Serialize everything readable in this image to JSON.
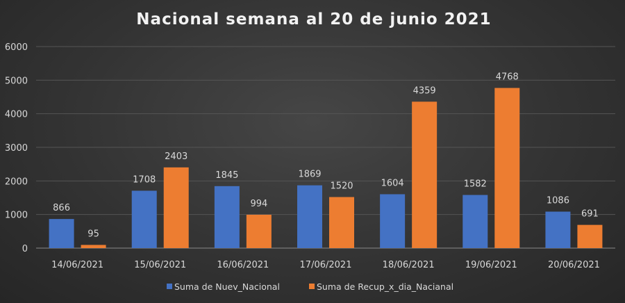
{
  "chart_data": {
    "type": "bar",
    "title": "Nacional semana al 20 de junio 2021",
    "xlabel": "",
    "ylabel": "",
    "ylim": [
      0,
      6000
    ],
    "yticks": [
      "0",
      "1000",
      "2000",
      "3000",
      "4000",
      "5000",
      "6000"
    ],
    "grid": true,
    "legend_position": "bottom",
    "categories": [
      "14/06/2021",
      "15/06/2021",
      "16/06/2021",
      "17/06/2021",
      "18/06/2021",
      "19/06/2021",
      "20/06/2021"
    ],
    "series": [
      {
        "name": "Suma de Nuev_Nacional",
        "color": "#4472c4",
        "values": [
          866,
          1708,
          1845,
          1869,
          1604,
          1582,
          1086
        ]
      },
      {
        "name": "Suma de Recup_x_dia_Nacianal",
        "color": "#ed7d31",
        "values": [
          95,
          2403,
          994,
          1520,
          4359,
          4768,
          691
        ]
      }
    ]
  }
}
